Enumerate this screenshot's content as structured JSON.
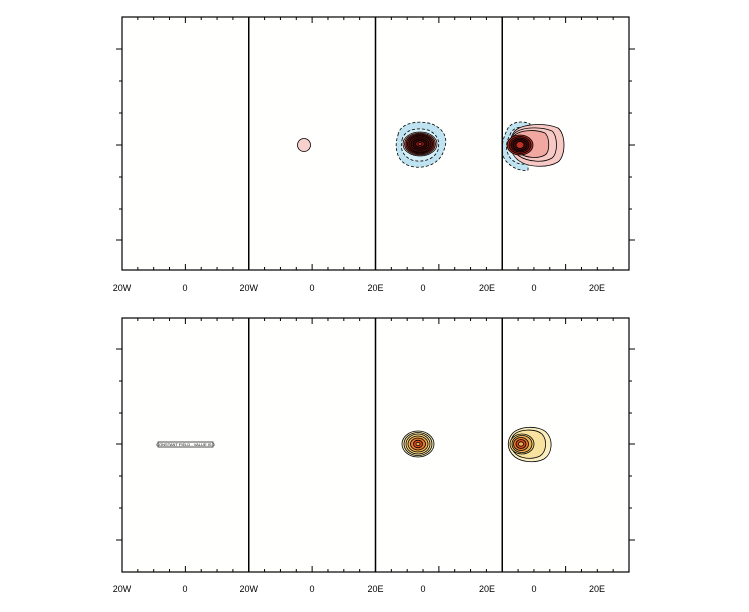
{
  "chart_data": [
    {
      "type": "contour-map",
      "panel": "top",
      "xtick_labels": [
        "20W",
        "0",
        "20W",
        "0",
        "20E",
        "0",
        "20E",
        "0",
        "20E"
      ],
      "columns": 4,
      "features": [
        {
          "column": 2,
          "kind": "positive",
          "color": "#f8d0cc",
          "levels": 1
        },
        {
          "column": 3,
          "kind": "negative-halo",
          "color": "#bfe3f0",
          "levels": 2
        },
        {
          "column": 3,
          "kind": "positive-core",
          "colors": [
            "#3a0a0a",
            "#6b1a16",
            "#a02a22",
            "#d04a3a"
          ],
          "levels": 8
        },
        {
          "column": 4,
          "kind": "negative-halo",
          "color": "#bfe3f0",
          "levels": 2
        },
        {
          "column": 4,
          "kind": "positive-plume",
          "color": "#f8c8c4",
          "levels": 6
        },
        {
          "column": 4,
          "kind": "positive-core",
          "colors": [
            "#3a0a0a",
            "#7a1a16",
            "#c03024"
          ],
          "levels": 7
        }
      ]
    },
    {
      "type": "contour-map",
      "panel": "bottom",
      "xtick_labels": [
        "20W",
        "0",
        "20W",
        "0",
        "20E",
        "0",
        "20E",
        "0",
        "20E"
      ],
      "columns": 4,
      "info_label": "CONSTANT FIELD - VALUE IS 0",
      "features": [
        {
          "column": 3,
          "kind": "positive",
          "colors": [
            "#fbeec0",
            "#f5d580",
            "#f0b050",
            "#e87a30",
            "#d84a20"
          ],
          "levels": 6
        },
        {
          "column": 4,
          "kind": "positive",
          "colors": [
            "#fbeec0",
            "#f5d580",
            "#f0b050",
            "#e87a30",
            "#d84a20"
          ],
          "levels": 7
        }
      ]
    }
  ],
  "colors": {
    "frame": "#000000",
    "background": "#ffffff",
    "negative": "#bfe3f0",
    "warm": "#f8c8c4",
    "dark_core": "#3a0a0a",
    "yellow_light": "#fbeec0",
    "orange_core": "#d84a20"
  }
}
